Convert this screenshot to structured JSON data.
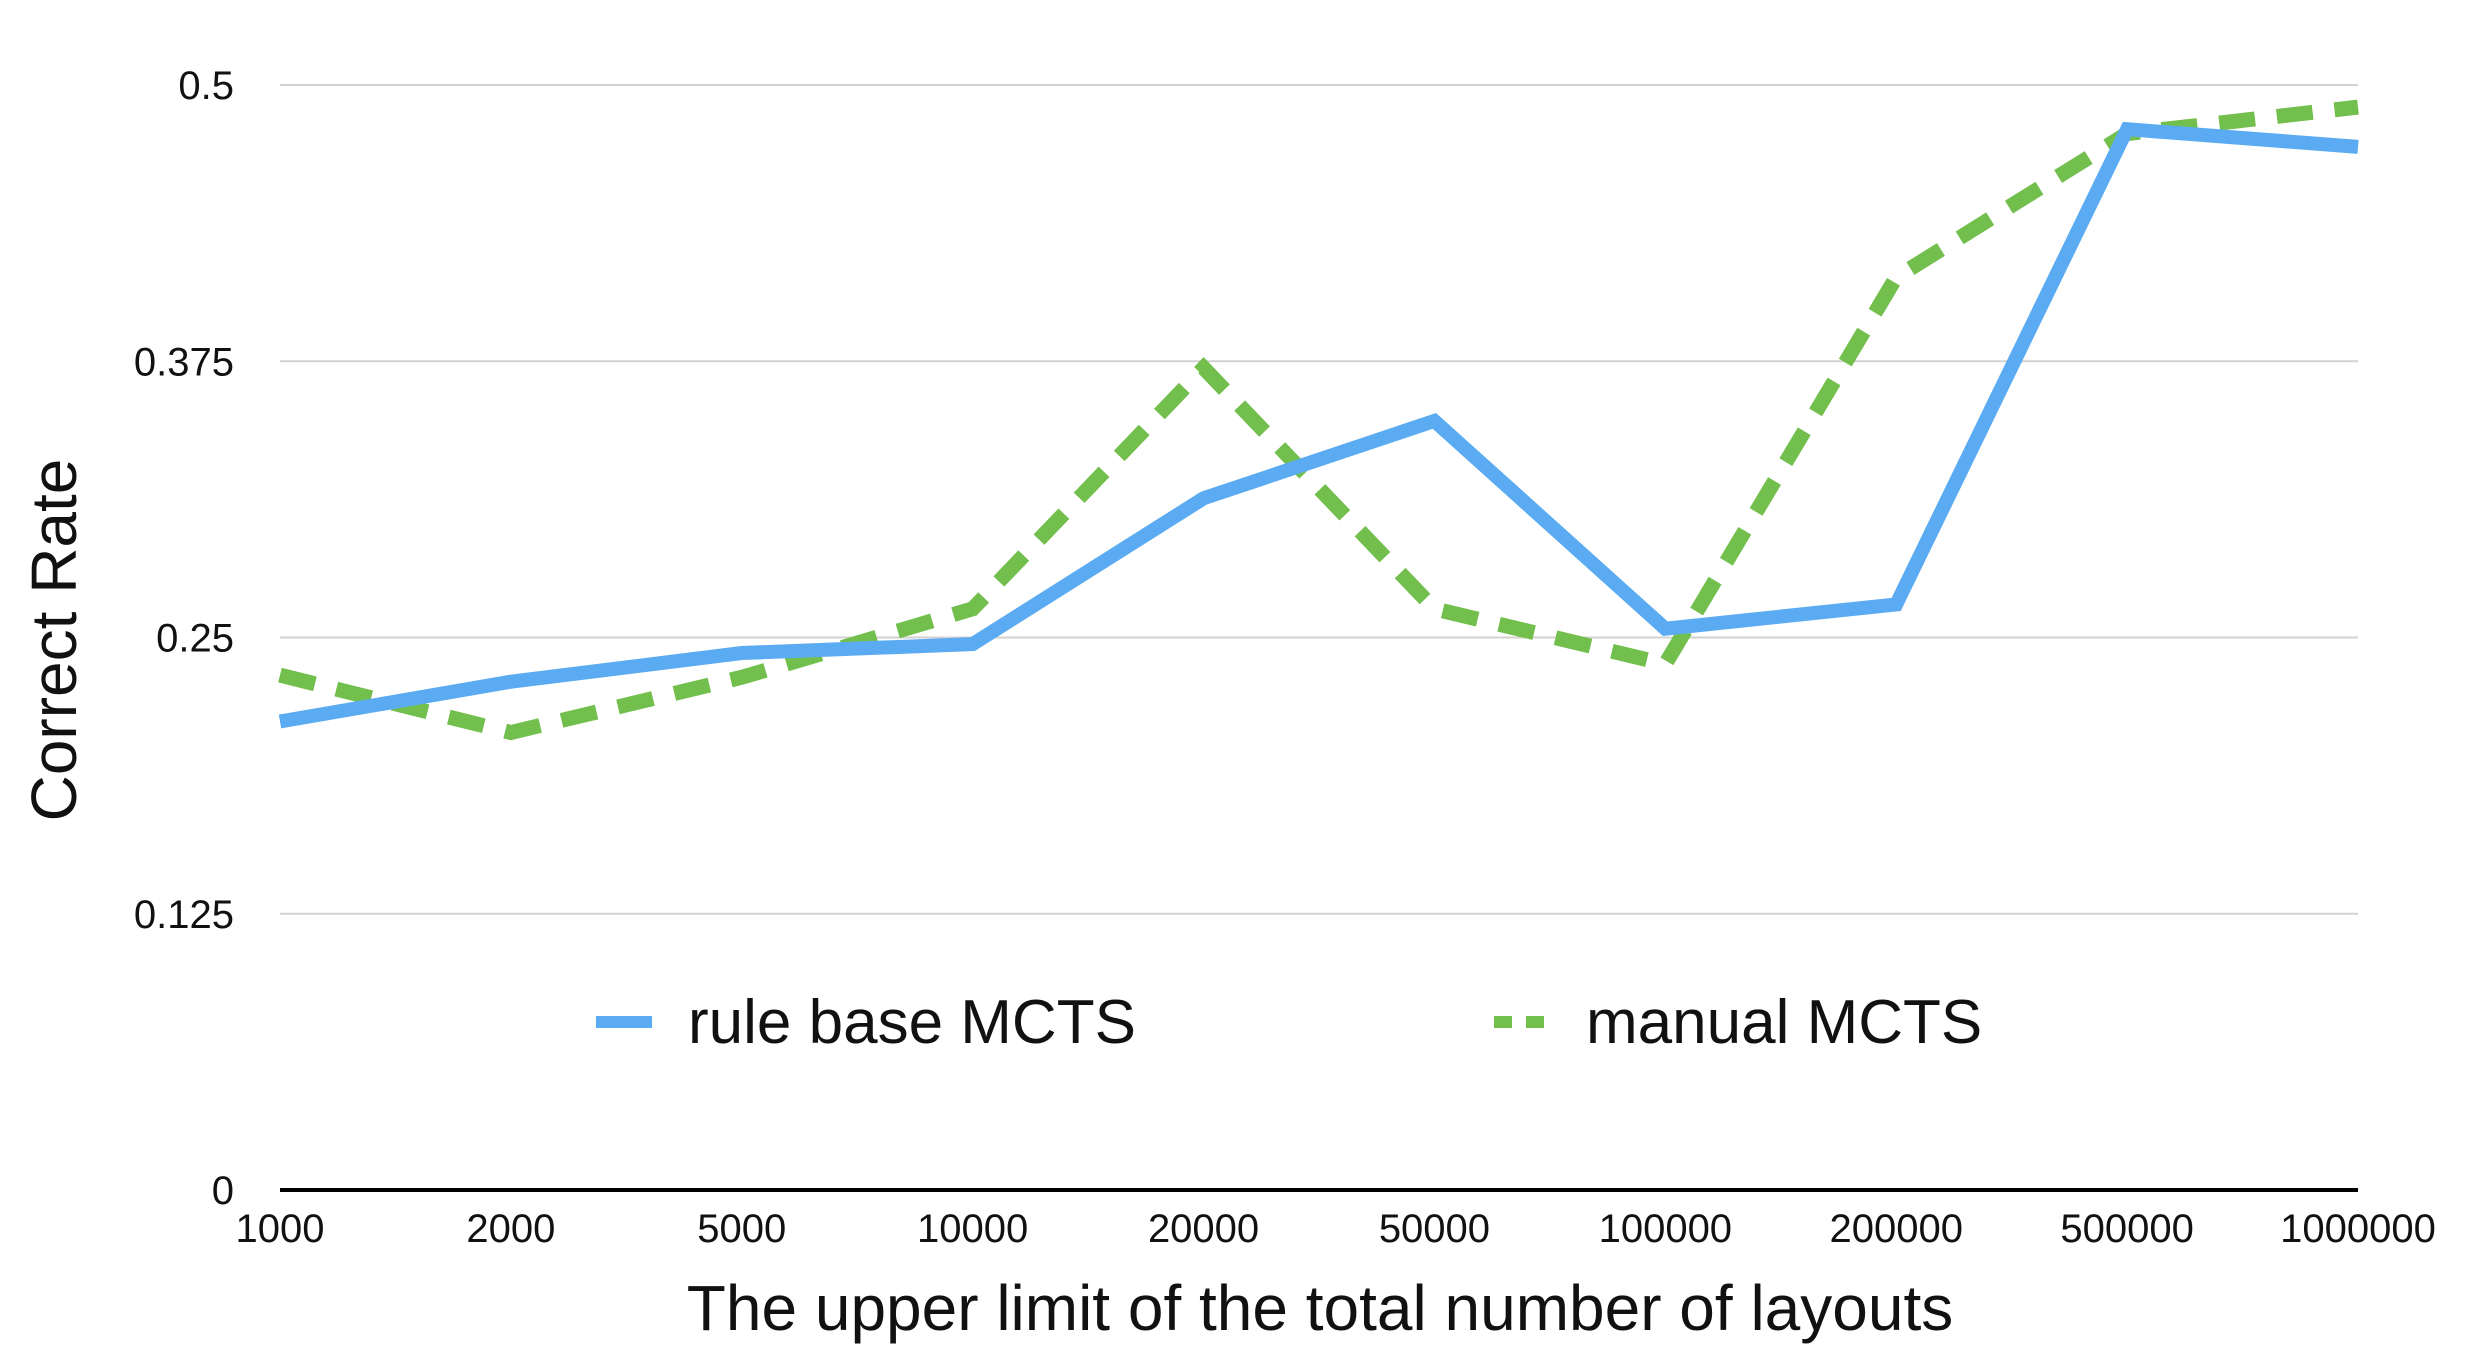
{
  "chart_data": {
    "type": "line",
    "title": "",
    "xlabel": "The upper limit of the total number of layouts",
    "ylabel": "Correct Rate",
    "categories": [
      "1000",
      "2000",
      "5000",
      "10000",
      "20000",
      "50000",
      "100000",
      "200000",
      "500000",
      "1000000"
    ],
    "yticks": [
      "0",
      "0.125",
      "0.25",
      "0.375",
      "0.5"
    ],
    "ylim": [
      0,
      0.5
    ],
    "grid": true,
    "legend_position": "bottom-center",
    "series": [
      {
        "name": "rule base MCTS",
        "color": "#5aabf2",
        "style": "solid",
        "values": [
          0.212,
          0.23,
          0.243,
          0.247,
          0.313,
          0.348,
          0.254,
          0.265,
          0.48,
          0.472
        ]
      },
      {
        "name": "manual MCTS",
        "color": "#72bf4d",
        "style": "dashed",
        "values": [
          0.233,
          0.207,
          0.232,
          0.263,
          0.372,
          0.263,
          0.238,
          0.413,
          0.478,
          0.49
        ]
      }
    ]
  }
}
